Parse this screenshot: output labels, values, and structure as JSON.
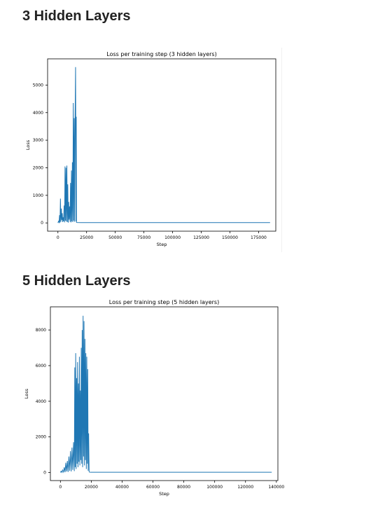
{
  "sections": [
    {
      "heading": "3 Hidden Layers"
    },
    {
      "heading": "5 Hidden Layers"
    }
  ],
  "colors": {
    "line": "#1f77b4",
    "axes": "#000000",
    "background": "#ffffff"
  },
  "chart_data": [
    {
      "type": "line",
      "title": "Loss per training step (3 hidden layers)",
      "xlabel": "Step",
      "ylabel": "Loss",
      "xlim": [
        -9000,
        190000
      ],
      "ylim": [
        -300,
        5950
      ],
      "xticks": [
        0,
        25000,
        50000,
        75000,
        100000,
        125000,
        150000,
        175000
      ],
      "xtick_labels": [
        "0",
        "25000",
        "50000",
        "75000",
        "100000",
        "125000",
        "150000",
        "175000"
      ],
      "yticks": [
        0,
        1000,
        2000,
        3000,
        4000,
        5000
      ],
      "ytick_labels": [
        "0",
        "1000",
        "2000",
        "3000",
        "4000",
        "5000"
      ],
      "grid": false,
      "legend": false,
      "series": [
        {
          "x": [
            0,
            500,
            1000,
            1400,
            1800,
            2200,
            2600,
            3000,
            3400,
            3800,
            4200,
            4600,
            5000,
            5400,
            5800,
            6200,
            6600,
            7000,
            7400,
            7800,
            8200,
            8600,
            9000,
            9400,
            9800,
            10200,
            10600,
            11000,
            11400,
            11800,
            12200,
            12600,
            13000,
            13400,
            13800,
            14200,
            14600,
            15000,
            15400,
            15800,
            16000,
            16200,
            16500,
            20000,
            40000,
            60000,
            80000,
            100000,
            120000,
            140000,
            160000,
            185000
          ],
          "y": [
            0,
            60,
            20,
            280,
            10,
            880,
            40,
            520,
            100,
            350,
            30,
            200,
            60,
            630,
            20,
            2050,
            80,
            2000,
            50,
            2080,
            30,
            1400,
            10,
            760,
            120,
            600,
            40,
            1450,
            20,
            1900,
            60,
            2200,
            30,
            4350,
            80,
            3800,
            40,
            3900,
            5650,
            60,
            3850,
            20,
            15,
            10,
            10,
            10,
            10,
            10,
            10,
            10,
            10,
            10
          ]
        }
      ]
    },
    {
      "type": "line",
      "title": "Loss per training step (5 hidden layers)",
      "xlabel": "Step",
      "ylabel": "Loss",
      "xlim": [
        -6500,
        141000
      ],
      "ylim": [
        -450,
        9300
      ],
      "xticks": [
        0,
        20000,
        40000,
        60000,
        80000,
        100000,
        120000,
        140000
      ],
      "xtick_labels": [
        "0",
        "20000",
        "40000",
        "60000",
        "80000",
        "100000",
        "120000",
        "140000"
      ],
      "yticks": [
        0,
        2000,
        4000,
        6000,
        8000
      ],
      "ytick_labels": [
        "0",
        "2000",
        "4000",
        "6000",
        "8000"
      ],
      "grid": false,
      "legend": false,
      "series": [
        {
          "x": [
            0,
            500,
            1000,
            1500,
            2000,
            2500,
            3000,
            3500,
            4000,
            4500,
            5000,
            5500,
            6000,
            6500,
            7000,
            7500,
            8000,
            8500,
            9000,
            9300,
            9600,
            9900,
            10200,
            10500,
            10800,
            11100,
            11400,
            11700,
            12000,
            12300,
            12600,
            12900,
            13200,
            13500,
            13800,
            14100,
            14400,
            14700,
            15000,
            15300,
            15600,
            15900,
            16200,
            16500,
            16800,
            17100,
            17400,
            17700,
            18000,
            18300,
            18600,
            18900,
            20000,
            40000,
            60000,
            80000,
            100000,
            120000,
            137000
          ],
          "y": [
            0,
            80,
            10,
            140,
            30,
            300,
            20,
            550,
            60,
            650,
            40,
            900,
            100,
            1200,
            60,
            1400,
            150,
            1700,
            80,
            5900,
            300,
            6700,
            200,
            5300,
            500,
            6200,
            300,
            5000,
            600,
            6500,
            400,
            4600,
            700,
            7000,
            500,
            8000,
            300,
            8800,
            900,
            8500,
            400,
            7500,
            700,
            6700,
            200,
            6500,
            500,
            5800,
            100,
            2200,
            50,
            20,
            15,
            15,
            15,
            15,
            15,
            15,
            15
          ]
        }
      ]
    }
  ]
}
